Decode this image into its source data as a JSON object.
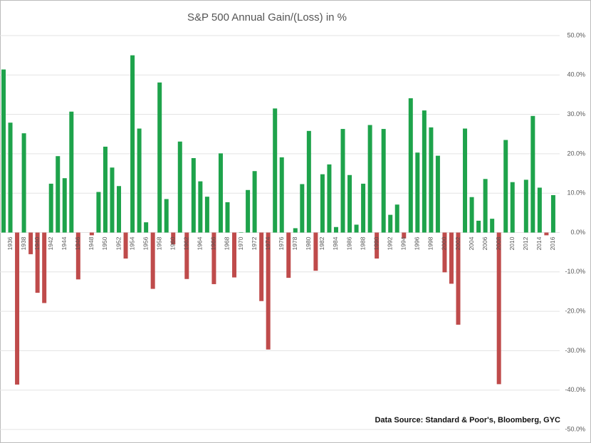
{
  "chart_data": {
    "type": "bar",
    "title": "S&P 500 Annual Gain/(Loss) in %",
    "annotation": "Data Source: Standard & Poor's, Bloomberg, GYC",
    "categories": [
      null,
      "1936",
      null,
      "1938",
      null,
      "1940",
      null,
      "1942",
      null,
      "1944",
      null,
      "1946",
      null,
      "1948",
      null,
      "1950",
      null,
      "1952",
      null,
      "1954",
      null,
      "1956",
      null,
      "1958",
      null,
      "1960",
      null,
      "1962",
      null,
      "1964",
      null,
      "1966",
      null,
      "1968",
      null,
      "1970",
      null,
      "1972",
      null,
      "1974",
      null,
      "1976",
      null,
      "1978",
      null,
      "1980",
      null,
      "1982",
      null,
      "1984",
      null,
      "1986",
      null,
      "1988",
      null,
      "1990",
      null,
      "1992",
      null,
      "1994",
      null,
      "1996",
      null,
      "1998",
      null,
      "2000",
      null,
      "2002",
      null,
      "2004",
      null,
      "2006",
      null,
      "2008",
      null,
      "2010",
      null,
      "2012",
      null,
      "2014",
      null,
      "2016"
    ],
    "values": [
      41.4,
      27.9,
      -38.6,
      25.2,
      -5.5,
      -15.3,
      -17.9,
      12.4,
      19.4,
      13.8,
      30.7,
      -11.9,
      0.0,
      -0.7,
      10.3,
      21.8,
      16.5,
      11.8,
      -6.6,
      45.0,
      26.4,
      2.6,
      -14.3,
      38.1,
      8.5,
      -3.0,
      23.1,
      -11.8,
      18.9,
      13.0,
      9.1,
      -13.1,
      20.1,
      7.7,
      -11.4,
      0.1,
      10.8,
      15.6,
      -17.4,
      -29.7,
      31.5,
      19.1,
      -11.5,
      1.1,
      12.3,
      25.8,
      -9.7,
      14.8,
      17.3,
      1.4,
      26.3,
      14.6,
      2.0,
      12.4,
      27.3,
      -6.6,
      26.3,
      4.5,
      7.1,
      -1.5,
      34.1,
      20.3,
      31.0,
      26.7,
      19.5,
      -10.1,
      -13.0,
      -23.4,
      26.4,
      9.0,
      3.0,
      13.6,
      3.5,
      -38.5,
      23.5,
      12.8,
      0.0,
      13.4,
      29.6,
      11.4,
      -0.7,
      9.5
    ],
    "positive_color": "#1ea34b",
    "negative_color": "#bf4b4b",
    "ylim": [
      -50,
      50
    ],
    "yticks": [
      {
        "value": -50,
        "label": "-50.0%"
      },
      {
        "value": -40,
        "label": "-40.0%"
      },
      {
        "value": -30,
        "label": "-30.0%"
      },
      {
        "value": -20,
        "label": "-20.0%"
      },
      {
        "value": -10,
        "label": "-10.0%"
      },
      {
        "value": 0,
        "label": "0.0%"
      },
      {
        "value": 10,
        "label": "10.0%"
      },
      {
        "value": 20,
        "label": "20.0%"
      },
      {
        "value": 30,
        "label": "30.0%"
      },
      {
        "value": 40,
        "label": "40.0%"
      },
      {
        "value": 50,
        "label": "50.0%"
      }
    ],
    "grid": true
  }
}
